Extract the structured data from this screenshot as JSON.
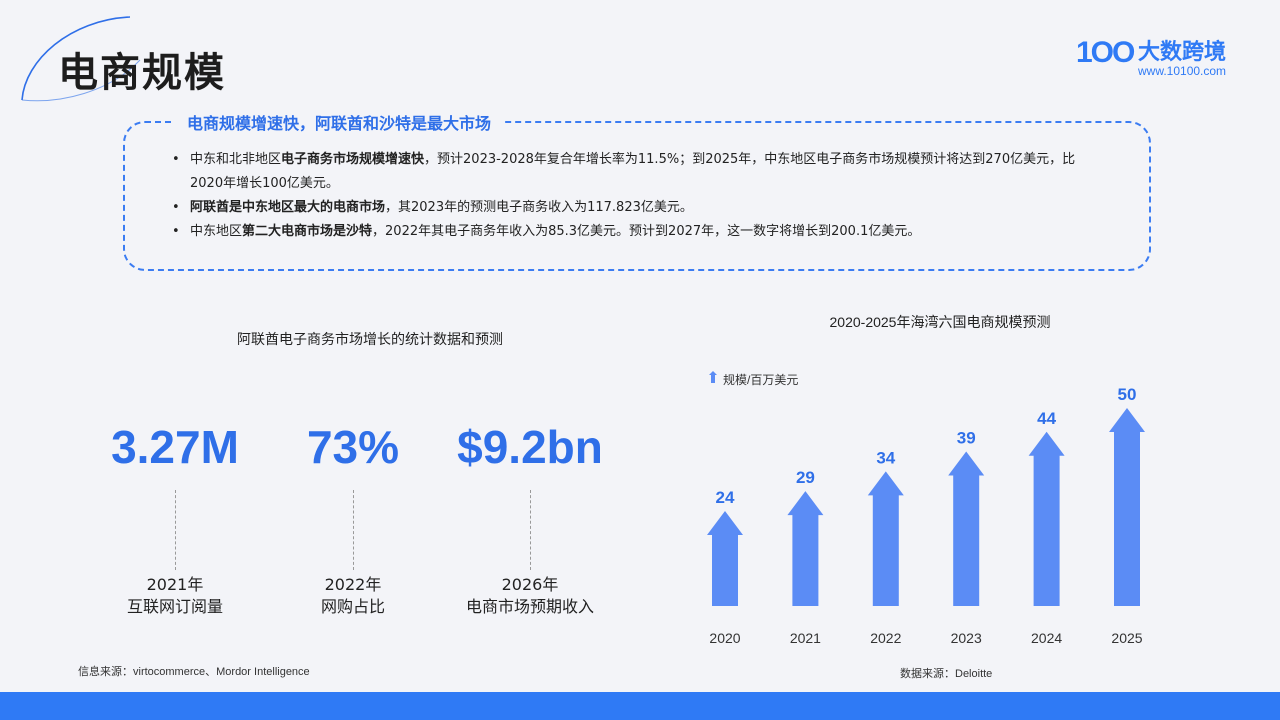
{
  "page": {
    "title": "电商规模",
    "logo": {
      "mark": "1OO",
      "brand": "大数跨境",
      "url": "www.10100.com"
    }
  },
  "summary": {
    "heading": "电商规模增速快，阿联酋和沙特是最大市场",
    "items": [
      {
        "parts": [
          {
            "text": "中东和北非地区",
            "bold": false
          },
          {
            "text": "电子商务市场规模增速快",
            "bold": true
          },
          {
            "text": "，预计2023-2028年复合年增长率为11.5%；到2025年，中东地区电子商务市场规模预计将达到270亿美元，比2020年增长100亿美元。",
            "bold": false
          }
        ]
      },
      {
        "parts": [
          {
            "text": "阿联酋是中东地区最大的电商市场",
            "bold": true
          },
          {
            "text": "，其2023年的预测电子商务收入为117.823亿美元。",
            "bold": false
          }
        ]
      },
      {
        "parts": [
          {
            "text": "中东地区",
            "bold": false
          },
          {
            "text": "第二大电商市场是沙特",
            "bold": true
          },
          {
            "text": "，2022年其电子商务年收入为85.3亿美元。预计到2027年，这一数字将增长到200.1亿美元。",
            "bold": false
          }
        ]
      }
    ]
  },
  "stats": {
    "title": "阿联酋电子商务市场增长的统计数据和预测",
    "items": [
      {
        "value": "3.27M",
        "year": "2021年",
        "desc": "互联网订阅量"
      },
      {
        "value": "73%",
        "year": "2022年",
        "desc": "网购占比"
      },
      {
        "value": "$9.2bn",
        "year": "2026年",
        "desc": "电商市场预期收入"
      }
    ],
    "source": "信息来源：virtocommerce、Mordor Intelligence"
  },
  "chart_data": {
    "type": "bar",
    "title": "2020-2025年海湾六国电商规模预测",
    "legend": "规模/百万美元",
    "categories": [
      "2020",
      "2021",
      "2022",
      "2023",
      "2024",
      "2025"
    ],
    "values": [
      24,
      29,
      34,
      39,
      44,
      50
    ],
    "ylim": [
      0,
      50
    ],
    "grid": false,
    "legend_position": "top-left",
    "bar_shape": "upward arrow",
    "color": "#5b8cf5",
    "source": "数据来源：Deloitte"
  },
  "colors": {
    "accent": "#2f6fe8",
    "bottom_bar": "#2f7af5",
    "background": "#f3f4f8"
  }
}
